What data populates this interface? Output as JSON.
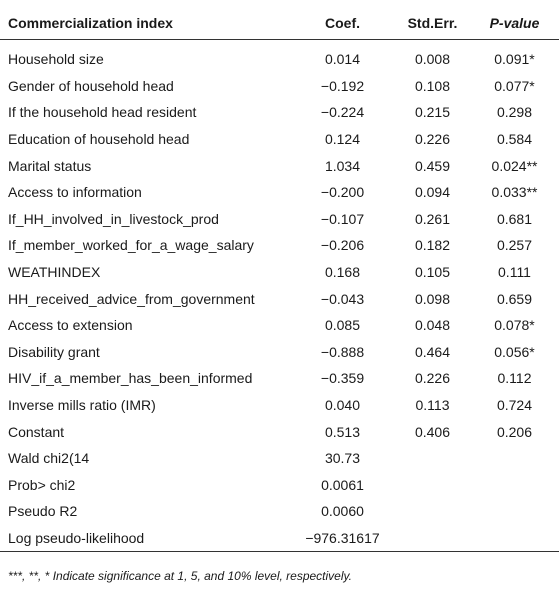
{
  "table": {
    "headers": [
      "Commercialization index",
      "Coef.",
      "Std.Err.",
      "P-value"
    ],
    "rows": [
      [
        "Household size",
        "0.014",
        "0.008",
        "0.091*"
      ],
      [
        "Gender of household head",
        "−0.192",
        "0.108",
        "0.077*"
      ],
      [
        "If the household head resident",
        "−0.224",
        "0.215",
        "0.298"
      ],
      [
        "Education of household head",
        "0.124",
        "0.226",
        "0.584"
      ],
      [
        "Marital status",
        "1.034",
        "0.459",
        "0.024**"
      ],
      [
        "Access to information",
        "−0.200",
        "0.094",
        "0.033**"
      ],
      [
        "If_HH_involved_in_livestock_prod",
        "−0.107",
        "0.261",
        "0.681"
      ],
      [
        "If_member_worked_for_a_wage_salary",
        "−0.206",
        "0.182",
        "0.257"
      ],
      [
        "WEATHINDEX",
        "0.168",
        "0.105",
        "0.111"
      ],
      [
        "HH_received_advice_from_government",
        "−0.043",
        "0.098",
        "0.659"
      ],
      [
        "Access to extension",
        "0.085",
        "0.048",
        "0.078*"
      ],
      [
        "Disability grant",
        "−0.888",
        "0.464",
        "0.056*"
      ],
      [
        "HIV_if_a_member_has_been_informed",
        "−0.359",
        "0.226",
        "0.112"
      ],
      [
        "Inverse mills ratio (IMR)",
        "0.040",
        "0.113",
        "0.724"
      ],
      [
        "Constant",
        "0.513",
        "0.406",
        "0.206"
      ],
      [
        "Wald chi2(14",
        "30.73",
        "",
        ""
      ],
      [
        "Prob> chi2",
        "0.0061",
        "",
        ""
      ],
      [
        "Pseudo R2",
        "0.0060",
        "",
        ""
      ],
      [
        "Log pseudo-likelihood",
        "−976.31617",
        "",
        ""
      ]
    ]
  },
  "note": "***, **, * Indicate significance at 1, 5, and 10% level, respectively."
}
